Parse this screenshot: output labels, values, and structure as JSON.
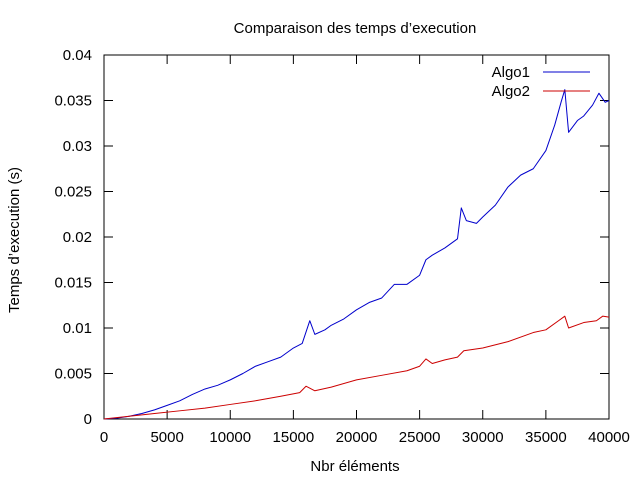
{
  "chart_data": {
    "type": "line",
    "title": "Comparaison des temps d’execution",
    "xlabel": "Nbr éléments",
    "ylabel": "Temps d’execution (s)",
    "xlim": [
      0,
      40000
    ],
    "ylim": [
      0,
      0.04
    ],
    "xticks": [
      0,
      5000,
      10000,
      15000,
      20000,
      25000,
      30000,
      35000,
      40000
    ],
    "xtick_labels": [
      "0",
      "5000",
      "10000",
      "15000",
      "20000",
      "25000",
      "30000",
      "35000",
      "40000"
    ],
    "yticks": [
      0,
      0.005,
      0.01,
      0.015,
      0.02,
      0.025,
      0.03,
      0.035,
      0.04
    ],
    "ytick_labels": [
      "0",
      "0.005",
      "0.01",
      "0.015",
      "0.02",
      "0.025",
      "0.03",
      "0.035",
      "0.04"
    ],
    "grid": false,
    "legend_position": "top-right",
    "series": [
      {
        "name": "Algo1",
        "color": "#0000cc",
        "points": [
          [
            0,
            0
          ],
          [
            1000,
            0.0001
          ],
          [
            2000,
            0.0003
          ],
          [
            3000,
            0.0006
          ],
          [
            4000,
            0.001
          ],
          [
            5000,
            0.0015
          ],
          [
            6000,
            0.002
          ],
          [
            7000,
            0.0027
          ],
          [
            8000,
            0.0033
          ],
          [
            9000,
            0.0037
          ],
          [
            10000,
            0.0043
          ],
          [
            11000,
            0.005
          ],
          [
            12000,
            0.0058
          ],
          [
            13000,
            0.0063
          ],
          [
            14000,
            0.0068
          ],
          [
            15000,
            0.0078
          ],
          [
            15700,
            0.0083
          ],
          [
            16300,
            0.0108
          ],
          [
            16700,
            0.0093
          ],
          [
            17500,
            0.0098
          ],
          [
            18000,
            0.0103
          ],
          [
            19000,
            0.011
          ],
          [
            20000,
            0.012
          ],
          [
            21000,
            0.0128
          ],
          [
            22000,
            0.0133
          ],
          [
            23000,
            0.0148
          ],
          [
            24000,
            0.0148
          ],
          [
            25000,
            0.0158
          ],
          [
            25500,
            0.0175
          ],
          [
            26000,
            0.018
          ],
          [
            27000,
            0.0188
          ],
          [
            28000,
            0.0198
          ],
          [
            28300,
            0.0232
          ],
          [
            28700,
            0.0218
          ],
          [
            29500,
            0.0215
          ],
          [
            30000,
            0.0222
          ],
          [
            31000,
            0.0235
          ],
          [
            32000,
            0.0255
          ],
          [
            33000,
            0.0268
          ],
          [
            34000,
            0.0275
          ],
          [
            35000,
            0.0295
          ],
          [
            35700,
            0.0323
          ],
          [
            36200,
            0.0348
          ],
          [
            36500,
            0.0362
          ],
          [
            36800,
            0.0315
          ],
          [
            37500,
            0.0328
          ],
          [
            38000,
            0.0333
          ],
          [
            38700,
            0.0345
          ],
          [
            39200,
            0.0358
          ],
          [
            39700,
            0.0348
          ],
          [
            40000,
            0.035
          ]
        ]
      },
      {
        "name": "Algo2",
        "color": "#cc0000",
        "points": [
          [
            0,
            0
          ],
          [
            2000,
            0.0003
          ],
          [
            4000,
            0.0006
          ],
          [
            6000,
            0.0009
          ],
          [
            8000,
            0.0012
          ],
          [
            10000,
            0.0016
          ],
          [
            12000,
            0.002
          ],
          [
            14000,
            0.0025
          ],
          [
            15500,
            0.0029
          ],
          [
            16000,
            0.0036
          ],
          [
            16700,
            0.0031
          ],
          [
            18000,
            0.0035
          ],
          [
            20000,
            0.0043
          ],
          [
            22000,
            0.0048
          ],
          [
            24000,
            0.0053
          ],
          [
            25000,
            0.0058
          ],
          [
            25500,
            0.0066
          ],
          [
            26000,
            0.0061
          ],
          [
            27000,
            0.0065
          ],
          [
            28000,
            0.0068
          ],
          [
            28500,
            0.0075
          ],
          [
            30000,
            0.0078
          ],
          [
            32000,
            0.0085
          ],
          [
            34000,
            0.0095
          ],
          [
            35000,
            0.0098
          ],
          [
            36000,
            0.0108
          ],
          [
            36500,
            0.0113
          ],
          [
            36800,
            0.01
          ],
          [
            38000,
            0.0106
          ],
          [
            39000,
            0.0108
          ],
          [
            39500,
            0.0113
          ],
          [
            40000,
            0.0112
          ]
        ]
      }
    ]
  }
}
